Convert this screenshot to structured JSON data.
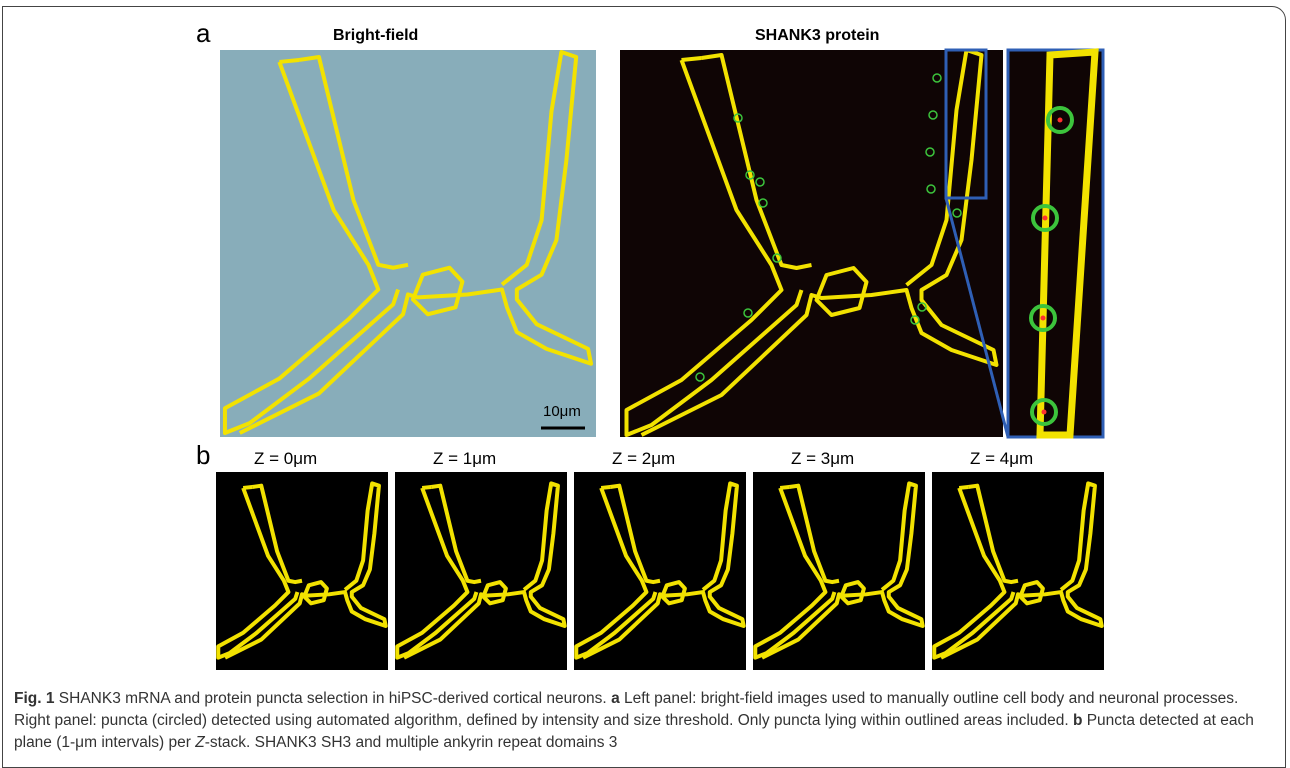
{
  "figure": {
    "panel_a": {
      "label": "a",
      "left_title": "Bright-field",
      "right_title": "SHANK3 protein",
      "scale_bar": "10μm"
    },
    "panel_b": {
      "label": "b",
      "planes": [
        "Z = 0μm",
        "Z = 1μm",
        "Z = 2μm",
        "Z = 3μm",
        "Z = 4μm"
      ]
    }
  },
  "caption": {
    "fig_label": "Fig. 1",
    "intro": "SHANK3 mRNA and protein puncta selection in hiPSC-derived cortical neurons.",
    "a_label": "a",
    "a_text": "Left panel: bright-field images used to manually outline cell body and neuronal processes. Right panel: puncta (circled) detected using automated algorithm, defined by intensity and size threshold. Only puncta lying within outlined areas included.",
    "b_label": "b",
    "b_text_1": "Puncta detected at each plane (1-μm intervals) per",
    "z": "Z",
    "b_text_2": "-stack. SHANK3 SH3 and multiple ankyrin repeat domains 3"
  }
}
